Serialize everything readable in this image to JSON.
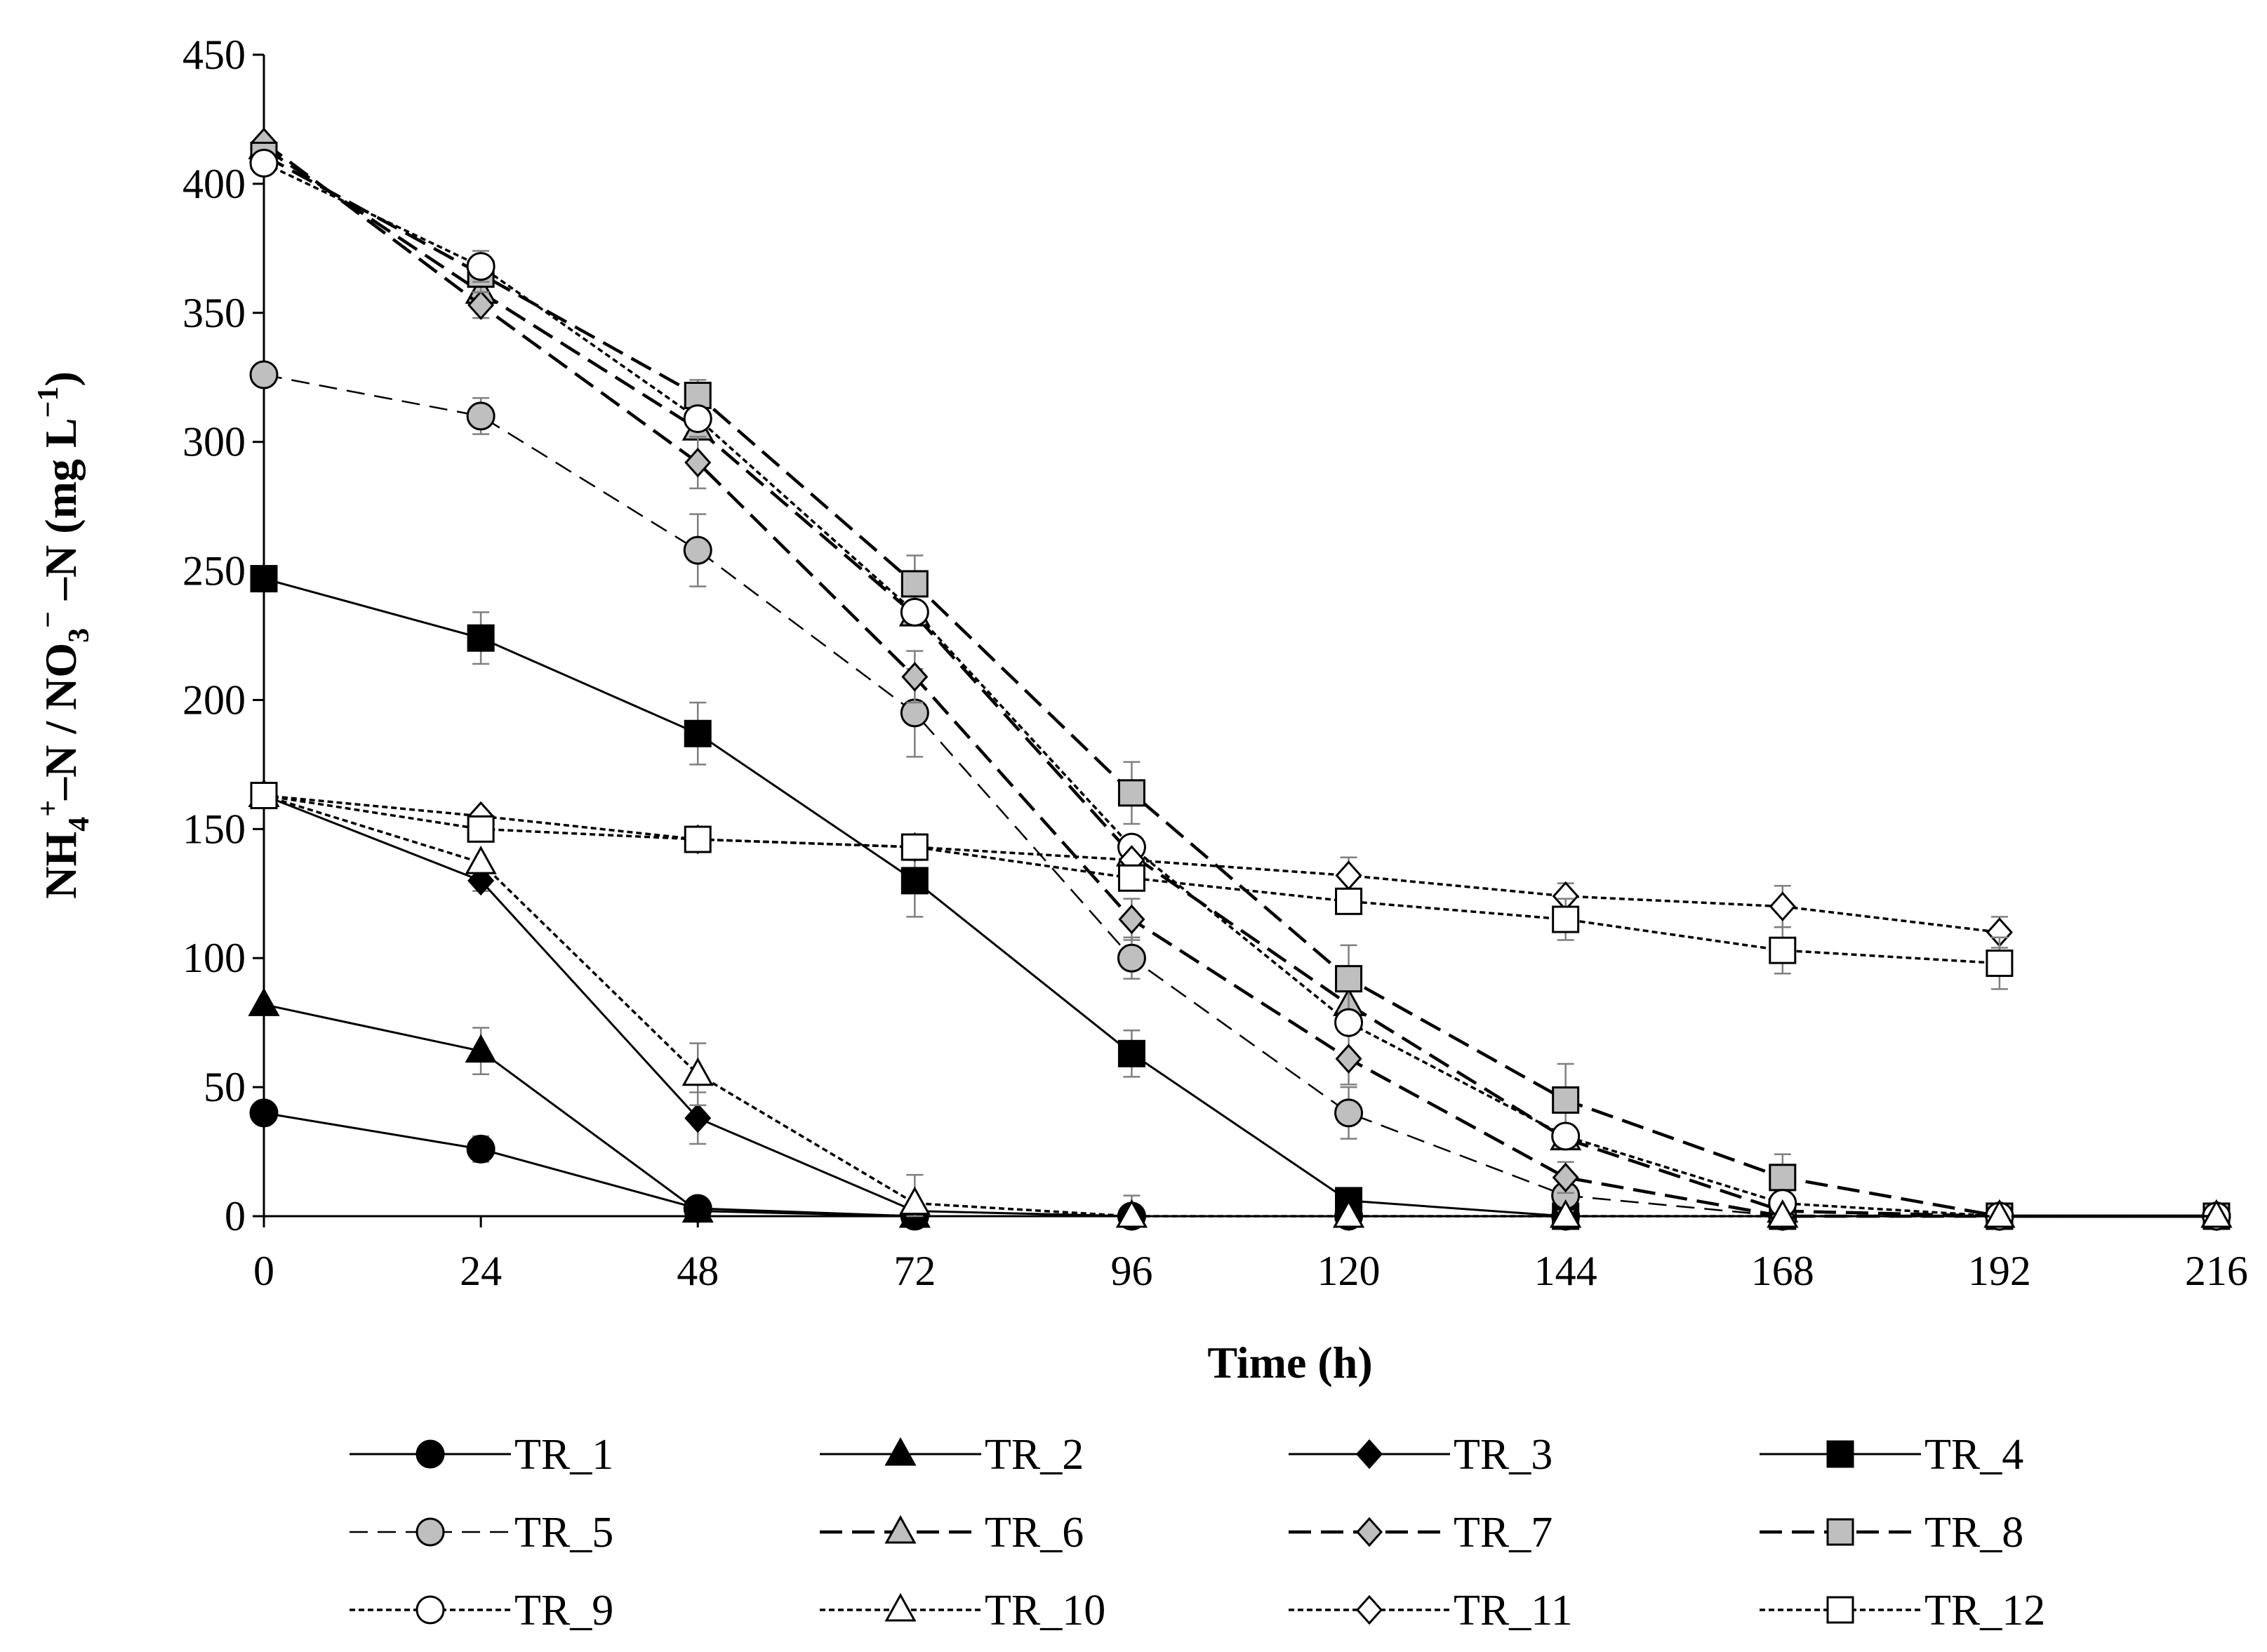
{
  "chart_data": {
    "type": "line",
    "title": "",
    "xlabel": "Time (h)",
    "ylabel": "NH4+–N / NO3−–N (mg L−1)",
    "ylabel_parts": {
      "p1": "NH",
      "sub1": "4",
      "sup1": "+",
      "p2": "–N / NO",
      "sub2": "3",
      "sup2": "−",
      "p3": " –N (mg L",
      "sup3": "−1",
      "p4": ")"
    },
    "xlim": [
      0,
      216
    ],
    "ylim": [
      0,
      450
    ],
    "x_ticks": [
      "0",
      "24",
      "48",
      "72",
      "96",
      "120",
      "144",
      "168",
      "192",
      "216"
    ],
    "y_ticks": [
      "0",
      "50",
      "100",
      "150",
      "200",
      "250",
      "300",
      "350",
      "400",
      "450"
    ],
    "legend_position": "bottom",
    "series": [
      {
        "name": "TR_1",
        "marker": "circle",
        "fill": "#000000",
        "line": "solid",
        "points": [
          [
            0,
            40
          ],
          [
            24,
            26
          ],
          [
            48,
            3
          ],
          [
            72,
            0
          ],
          [
            96,
            0
          ],
          [
            120,
            0
          ],
          [
            144,
            0
          ],
          [
            168,
            0
          ],
          [
            192,
            0
          ],
          [
            216,
            0
          ]
        ],
        "err": [
          0,
          5,
          0,
          0,
          0,
          0,
          0,
          0,
          0,
          0
        ]
      },
      {
        "name": "TR_2",
        "marker": "triangle",
        "fill": "#000000",
        "line": "solid",
        "points": [
          [
            0,
            82
          ],
          [
            24,
            64
          ],
          [
            48,
            2
          ],
          [
            72,
            0
          ],
          [
            96,
            0
          ],
          [
            120,
            0
          ],
          [
            144,
            0
          ],
          [
            168,
            0
          ],
          [
            192,
            0
          ],
          [
            216,
            0
          ]
        ],
        "err": [
          0,
          9,
          0,
          0,
          0,
          0,
          0,
          0,
          0,
          0
        ]
      },
      {
        "name": "TR_3",
        "marker": "diamond",
        "fill": "#000000",
        "line": "solid",
        "points": [
          [
            0,
            163
          ],
          [
            24,
            130
          ],
          [
            48,
            38
          ],
          [
            72,
            2
          ],
          [
            96,
            0
          ],
          [
            120,
            0
          ],
          [
            144,
            0
          ],
          [
            168,
            0
          ],
          [
            192,
            0
          ],
          [
            216,
            0
          ]
        ],
        "err": [
          0,
          4,
          10,
          0,
          0,
          0,
          0,
          0,
          0,
          0
        ]
      },
      {
        "name": "TR_4",
        "marker": "square",
        "fill": "#000000",
        "line": "solid",
        "points": [
          [
            0,
            247
          ],
          [
            24,
            224
          ],
          [
            48,
            187
          ],
          [
            72,
            130
          ],
          [
            96,
            63
          ],
          [
            120,
            6
          ],
          [
            144,
            0
          ],
          [
            168,
            0
          ],
          [
            192,
            0
          ],
          [
            216,
            0
          ]
        ],
        "err": [
          0,
          10,
          12,
          14,
          9,
          0,
          0,
          0,
          0,
          0
        ]
      },
      {
        "name": "TR_5",
        "marker": "circle",
        "fill": "#bfbfbf",
        "line": "dash-thin",
        "points": [
          [
            0,
            326
          ],
          [
            24,
            310
          ],
          [
            48,
            258
          ],
          [
            72,
            195
          ],
          [
            96,
            100
          ],
          [
            120,
            40
          ],
          [
            144,
            8
          ],
          [
            168,
            0
          ],
          [
            192,
            0
          ],
          [
            216,
            0
          ]
        ],
        "err": [
          0,
          7,
          14,
          17,
          8,
          10,
          6,
          0,
          0,
          0
        ]
      },
      {
        "name": "TR_6",
        "marker": "triangle",
        "fill": "#bfbfbf",
        "line": "dash-thick",
        "points": [
          [
            0,
            414
          ],
          [
            24,
            358
          ],
          [
            48,
            305
          ],
          [
            72,
            233
          ],
          [
            96,
            140
          ],
          [
            120,
            82
          ],
          [
            144,
            30
          ],
          [
            168,
            2
          ],
          [
            192,
            0
          ],
          [
            216,
            0
          ]
        ],
        "err": [
          0,
          0,
          0,
          0,
          0,
          0,
          0,
          0,
          0,
          0
        ]
      },
      {
        "name": "TR_7",
        "marker": "diamond",
        "fill": "#bfbfbf",
        "line": "dash-thick",
        "points": [
          [
            0,
            416
          ],
          [
            24,
            353
          ],
          [
            48,
            292
          ],
          [
            72,
            209
          ],
          [
            96,
            115
          ],
          [
            120,
            61
          ],
          [
            144,
            15
          ],
          [
            168,
            0
          ],
          [
            192,
            0
          ],
          [
            216,
            0
          ]
        ],
        "err": [
          0,
          5,
          10,
          10,
          8,
          10,
          6,
          0,
          0,
          0
        ]
      },
      {
        "name": "TR_8",
        "marker": "square",
        "fill": "#bfbfbf",
        "line": "dash-thick",
        "points": [
          [
            0,
            411
          ],
          [
            24,
            365
          ],
          [
            48,
            318
          ],
          [
            72,
            245
          ],
          [
            96,
            164
          ],
          [
            120,
            92
          ],
          [
            144,
            45
          ],
          [
            168,
            15
          ],
          [
            192,
            0
          ],
          [
            216,
            0
          ]
        ],
        "err": [
          0,
          7,
          6,
          11,
          12,
          13,
          14,
          9,
          0,
          0
        ]
      },
      {
        "name": "TR_9",
        "marker": "circle",
        "fill": "#ffffff",
        "line": "dot",
        "points": [
          [
            0,
            408
          ],
          [
            24,
            368
          ],
          [
            48,
            309
          ],
          [
            72,
            234
          ],
          [
            96,
            143
          ],
          [
            120,
            75
          ],
          [
            144,
            31
          ],
          [
            168,
            5
          ],
          [
            192,
            0
          ],
          [
            216,
            0
          ]
        ],
        "err": [
          0,
          6,
          0,
          0,
          0,
          0,
          0,
          0,
          0,
          0
        ]
      },
      {
        "name": "TR_10",
        "marker": "triangle",
        "fill": "#ffffff",
        "line": "dot",
        "points": [
          [
            0,
            163
          ],
          [
            24,
            137
          ],
          [
            48,
            55
          ],
          [
            72,
            5
          ],
          [
            96,
            0
          ],
          [
            120,
            0
          ],
          [
            144,
            0
          ],
          [
            168,
            0
          ],
          [
            192,
            0
          ],
          [
            216,
            0
          ]
        ],
        "err": [
          0,
          0,
          12,
          11,
          8,
          0,
          0,
          0,
          0,
          0
        ]
      },
      {
        "name": "TR_11",
        "marker": "diamond",
        "fill": "#ffffff",
        "line": "dot",
        "points": [
          [
            0,
            163
          ],
          [
            24,
            155
          ],
          [
            48,
            146
          ],
          [
            72,
            143
          ],
          [
            96,
            138
          ],
          [
            120,
            132
          ],
          [
            144,
            124
          ],
          [
            168,
            120
          ],
          [
            192,
            110
          ]
        ],
        "err": [
          0,
          0,
          0,
          5,
          0,
          7,
          5,
          8,
          6
        ]
      },
      {
        "name": "TR_12",
        "marker": "square",
        "fill": "#ffffff",
        "line": "dot",
        "points": [
          [
            0,
            163
          ],
          [
            24,
            150
          ],
          [
            48,
            146
          ],
          [
            72,
            143
          ],
          [
            96,
            131
          ],
          [
            120,
            122
          ],
          [
            144,
            115
          ],
          [
            168,
            103
          ],
          [
            192,
            98
          ]
        ],
        "err": [
          0,
          0,
          0,
          0,
          0,
          0,
          8,
          9,
          10
        ]
      }
    ]
  }
}
